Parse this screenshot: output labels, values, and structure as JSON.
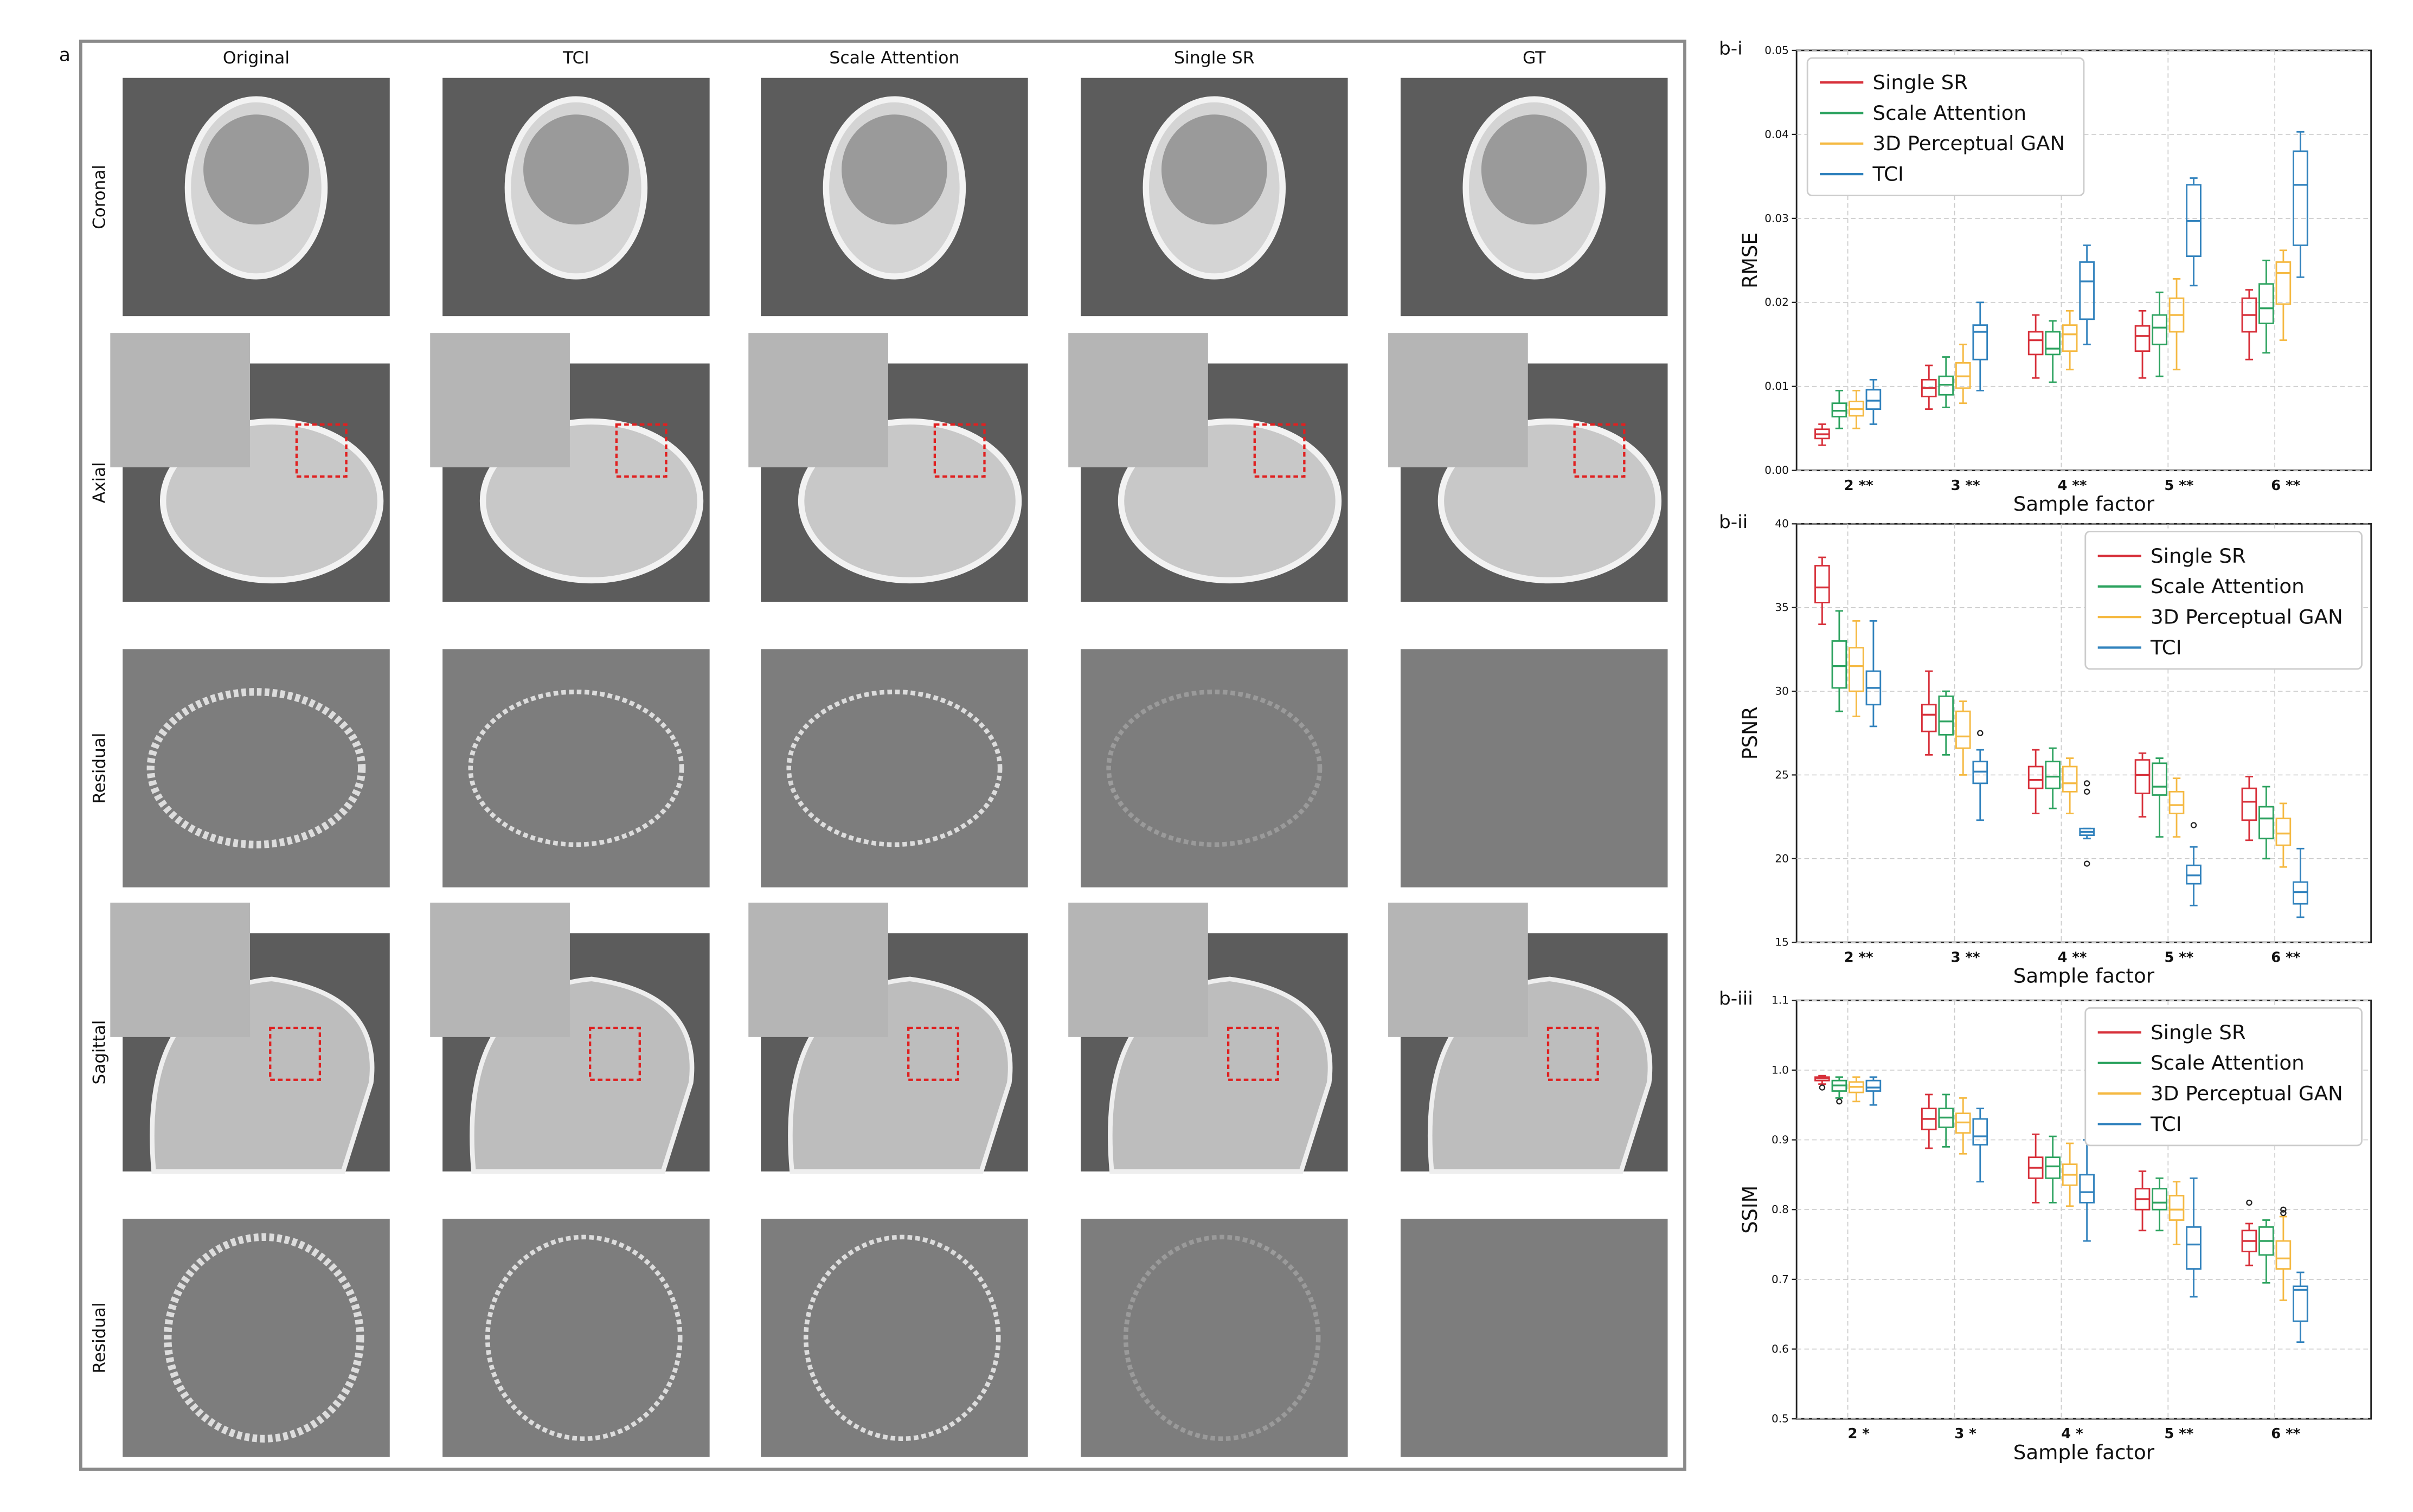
{
  "panel_a": {
    "label": "a",
    "columns": [
      "Original",
      "TCI",
      "Scale Attention",
      "Single SR",
      "GT"
    ],
    "rows": [
      "Coronal",
      "Axial",
      "Residual",
      "Sagittal",
      "Residual"
    ]
  },
  "chart_data": [
    {
      "type": "box",
      "panel_label": "b-i",
      "ylabel": "RMSE",
      "xlabel": "Sample factor",
      "categories": [
        "2 **",
        "3 **",
        "4 **",
        "5 **",
        "6 **"
      ],
      "ylim": [
        0,
        0.05
      ],
      "yticks": [
        {
          "value": 0,
          "label": "0.00"
        },
        {
          "value": 0.01,
          "label": "0.01"
        },
        {
          "value": 0.02,
          "label": "0.02"
        },
        {
          "value": 0.03,
          "label": "0.03"
        },
        {
          "value": 0.04,
          "label": "0.04"
        },
        {
          "value": 0.05,
          "label": "0.05"
        }
      ],
      "grid": true,
      "legend": "upper left",
      "series": [
        {
          "name": "Single SR",
          "color": "#d7303a",
          "values": [
            {
              "min": 0.003,
              "q1": 0.0038,
              "median": 0.0043,
              "q3": 0.0049,
              "max": 0.0055
            },
            {
              "min": 0.0073,
              "q1": 0.0088,
              "median": 0.0098,
              "q3": 0.0108,
              "max": 0.0125
            },
            {
              "min": 0.011,
              "q1": 0.0138,
              "median": 0.0155,
              "q3": 0.0165,
              "max": 0.0185
            },
            {
              "min": 0.011,
              "q1": 0.0142,
              "median": 0.016,
              "q3": 0.0172,
              "max": 0.019
            },
            {
              "min": 0.0132,
              "q1": 0.0165,
              "median": 0.0185,
              "q3": 0.0205,
              "max": 0.0215
            }
          ]
        },
        {
          "name": "Scale Attention",
          "color": "#2ca25f",
          "values": [
            {
              "min": 0.005,
              "q1": 0.0064,
              "median": 0.0071,
              "q3": 0.008,
              "max": 0.0095
            },
            {
              "min": 0.0075,
              "q1": 0.009,
              "median": 0.0102,
              "q3": 0.0112,
              "max": 0.0135
            },
            {
              "min": 0.0105,
              "q1": 0.0138,
              "median": 0.0145,
              "q3": 0.0165,
              "max": 0.0178
            },
            {
              "min": 0.0112,
              "q1": 0.015,
              "median": 0.017,
              "q3": 0.0185,
              "max": 0.0212
            },
            {
              "min": 0.014,
              "q1": 0.0175,
              "median": 0.0193,
              "q3": 0.0222,
              "max": 0.025
            }
          ]
        },
        {
          "name": "3D Perceptual GAN",
          "color": "#f5b942",
          "values": [
            {
              "min": 0.005,
              "q1": 0.0065,
              "median": 0.0073,
              "q3": 0.0082,
              "max": 0.0095
            },
            {
              "min": 0.008,
              "q1": 0.0098,
              "median": 0.0112,
              "q3": 0.0128,
              "max": 0.015
            },
            {
              "min": 0.012,
              "q1": 0.0142,
              "median": 0.0162,
              "q3": 0.0173,
              "max": 0.019
            },
            {
              "min": 0.012,
              "q1": 0.0165,
              "median": 0.0185,
              "q3": 0.0205,
              "max": 0.0228
            },
            {
              "min": 0.0155,
              "q1": 0.0198,
              "median": 0.0235,
              "q3": 0.0248,
              "max": 0.0262
            }
          ]
        },
        {
          "name": "TCI",
          "color": "#3182bd",
          "values": [
            {
              "min": 0.0055,
              "q1": 0.0073,
              "median": 0.0083,
              "q3": 0.0096,
              "max": 0.0108
            },
            {
              "min": 0.0095,
              "q1": 0.0132,
              "median": 0.0165,
              "q3": 0.0173,
              "max": 0.02
            },
            {
              "min": 0.015,
              "q1": 0.018,
              "median": 0.0225,
              "q3": 0.0248,
              "max": 0.0268
            },
            {
              "min": 0.022,
              "q1": 0.0255,
              "median": 0.0297,
              "q3": 0.034,
              "max": 0.0348
            },
            {
              "min": 0.023,
              "q1": 0.0268,
              "median": 0.034,
              "q3": 0.038,
              "max": 0.0403
            }
          ]
        }
      ]
    },
    {
      "type": "box",
      "panel_label": "b-ii",
      "ylabel": "PSNR",
      "xlabel": "Sample factor",
      "categories": [
        "2 **",
        "3 **",
        "4 **",
        "5 **",
        "6 **"
      ],
      "ylim": [
        15,
        40
      ],
      "yticks": [
        15,
        20,
        25,
        30,
        35,
        40
      ],
      "grid": true,
      "legend": "upper right",
      "series": [
        {
          "name": "Single SR",
          "color": "#d7303a",
          "values": [
            {
              "min": 34,
              "q1": 35.3,
              "median": 36.2,
              "q3": 37.5,
              "max": 38
            },
            {
              "min": 26.2,
              "q1": 27.6,
              "median": 28.6,
              "q3": 29.2,
              "max": 31.2
            },
            {
              "min": 22.7,
              "q1": 24.2,
              "median": 24.7,
              "q3": 25.5,
              "max": 26.5
            },
            {
              "min": 22.5,
              "q1": 23.9,
              "median": 25,
              "q3": 25.9,
              "max": 26.3
            },
            {
              "min": 21.1,
              "q1": 22.3,
              "median": 23.4,
              "q3": 24.2,
              "max": 24.9
            }
          ]
        },
        {
          "name": "Scale Attention",
          "color": "#2ca25f",
          "values": [
            {
              "min": 28.8,
              "q1": 30.2,
              "median": 31.5,
              "q3": 33,
              "max": 34.8
            },
            {
              "min": 26.2,
              "q1": 27.4,
              "median": 28.2,
              "q3": 29.7,
              "max": 30
            },
            {
              "min": 23,
              "q1": 24.2,
              "median": 24.9,
              "q3": 25.8,
              "max": 26.6
            },
            {
              "min": 21.3,
              "q1": 23.8,
              "median": 24.3,
              "q3": 25.7,
              "max": 26
            },
            {
              "min": 20,
              "q1": 21.2,
              "median": 22.4,
              "q3": 23.1,
              "max": 24.3
            }
          ]
        },
        {
          "name": "3D Perceptual GAN",
          "color": "#f5b942",
          "values": [
            {
              "min": 28.5,
              "q1": 30,
              "median": 31.5,
              "q3": 32.6,
              "max": 34.2
            },
            {
              "min": 25,
              "q1": 26.6,
              "median": 27.3,
              "q3": 28.8,
              "max": 29.4
            },
            {
              "min": 22.7,
              "q1": 24,
              "median": 24.5,
              "q3": 25.5,
              "max": 26
            },
            {
              "min": 21.3,
              "q1": 22.7,
              "median": 23.2,
              "q3": 24,
              "max": 24.8
            },
            {
              "min": 19.5,
              "q1": 20.8,
              "median": 21.5,
              "q3": 22.4,
              "max": 23.3
            }
          ]
        },
        {
          "name": "TCI",
          "color": "#3182bd",
          "values": [
            {
              "min": 27.9,
              "q1": 29.2,
              "median": 30.2,
              "q3": 31.2,
              "max": 34.2
            },
            {
              "min": 22.3,
              "q1": 24.5,
              "median": 25.2,
              "q3": 25.8,
              "max": 26.5,
              "outliers": [
                27.5
              ]
            },
            {
              "min": 21.2,
              "q1": 21.4,
              "median": 21.6,
              "q3": 21.8,
              "max": 21.8,
              "outliers": [
                24.5,
                24,
                19.7
              ]
            },
            {
              "min": 17.2,
              "q1": 18.5,
              "median": 19,
              "q3": 19.6,
              "max": 20.7,
              "outliers": [
                22
              ]
            },
            {
              "min": 16.5,
              "q1": 17.3,
              "median": 18,
              "q3": 18.6,
              "max": 20.6
            }
          ]
        }
      ]
    },
    {
      "type": "box",
      "panel_label": "b-iii",
      "ylabel": "SSIM",
      "xlabel": "Sample factor",
      "categories": [
        "2 *",
        "3 *",
        "4 *",
        "5 **",
        "6 **"
      ],
      "ylim": [
        0.5,
        1.1
      ],
      "yticks": [
        0.5,
        0.6,
        0.7,
        0.8,
        0.9,
        {
          "value": 1,
          "label": "1.0"
        },
        1.1
      ],
      "grid": true,
      "legend": "upper right",
      "series": [
        {
          "name": "Single SR",
          "color": "#d7303a",
          "values": [
            {
              "min": 0.98,
              "q1": 0.985,
              "median": 0.988,
              "q3": 0.99,
              "max": 0.992,
              "outliers": [
                0.975
              ]
            },
            {
              "min": 0.888,
              "q1": 0.915,
              "median": 0.93,
              "q3": 0.945,
              "max": 0.965
            },
            {
              "min": 0.81,
              "q1": 0.845,
              "median": 0.86,
              "q3": 0.875,
              "max": 0.908
            },
            {
              "min": 0.77,
              "q1": 0.8,
              "median": 0.815,
              "q3": 0.83,
              "max": 0.855
            },
            {
              "min": 0.72,
              "q1": 0.74,
              "median": 0.755,
              "q3": 0.77,
              "max": 0.78,
              "outliers": [
                0.81
              ]
            }
          ]
        },
        {
          "name": "Scale Attention",
          "color": "#2ca25f",
          "values": [
            {
              "min": 0.96,
              "q1": 0.97,
              "median": 0.978,
              "q3": 0.985,
              "max": 0.99,
              "outliers": [
                0.955
              ]
            },
            {
              "min": 0.89,
              "q1": 0.918,
              "median": 0.932,
              "q3": 0.945,
              "max": 0.965
            },
            {
              "min": 0.81,
              "q1": 0.845,
              "median": 0.862,
              "q3": 0.875,
              "max": 0.905
            },
            {
              "min": 0.77,
              "q1": 0.8,
              "median": 0.81,
              "q3": 0.83,
              "max": 0.845
            },
            {
              "min": 0.695,
              "q1": 0.735,
              "median": 0.755,
              "q3": 0.775,
              "max": 0.785
            }
          ]
        },
        {
          "name": "3D Perceptual GAN",
          "color": "#f5b942",
          "values": [
            {
              "min": 0.955,
              "q1": 0.968,
              "median": 0.976,
              "q3": 0.983,
              "max": 0.99
            },
            {
              "min": 0.88,
              "q1": 0.91,
              "median": 0.925,
              "q3": 0.938,
              "max": 0.96
            },
            {
              "min": 0.805,
              "q1": 0.835,
              "median": 0.85,
              "q3": 0.865,
              "max": 0.895
            },
            {
              "min": 0.75,
              "q1": 0.785,
              "median": 0.8,
              "q3": 0.82,
              "max": 0.84
            },
            {
              "min": 0.67,
              "q1": 0.715,
              "median": 0.73,
              "q3": 0.755,
              "max": 0.79,
              "outliers": [
                0.8,
                0.795
              ]
            }
          ]
        },
        {
          "name": "TCI",
          "color": "#3182bd",
          "values": [
            {
              "min": 0.95,
              "q1": 0.97,
              "median": 0.975,
              "q3": 0.985,
              "max": 0.99
            },
            {
              "min": 0.84,
              "q1": 0.893,
              "median": 0.905,
              "q3": 0.93,
              "max": 0.945
            },
            {
              "min": 0.755,
              "q1": 0.81,
              "median": 0.825,
              "q3": 0.85,
              "max": 0.9
            },
            {
              "min": 0.675,
              "q1": 0.715,
              "median": 0.75,
              "q3": 0.775,
              "max": 0.845
            },
            {
              "min": 0.61,
              "q1": 0.64,
              "median": 0.685,
              "q3": 0.69,
              "max": 0.71
            }
          ]
        }
      ]
    }
  ]
}
